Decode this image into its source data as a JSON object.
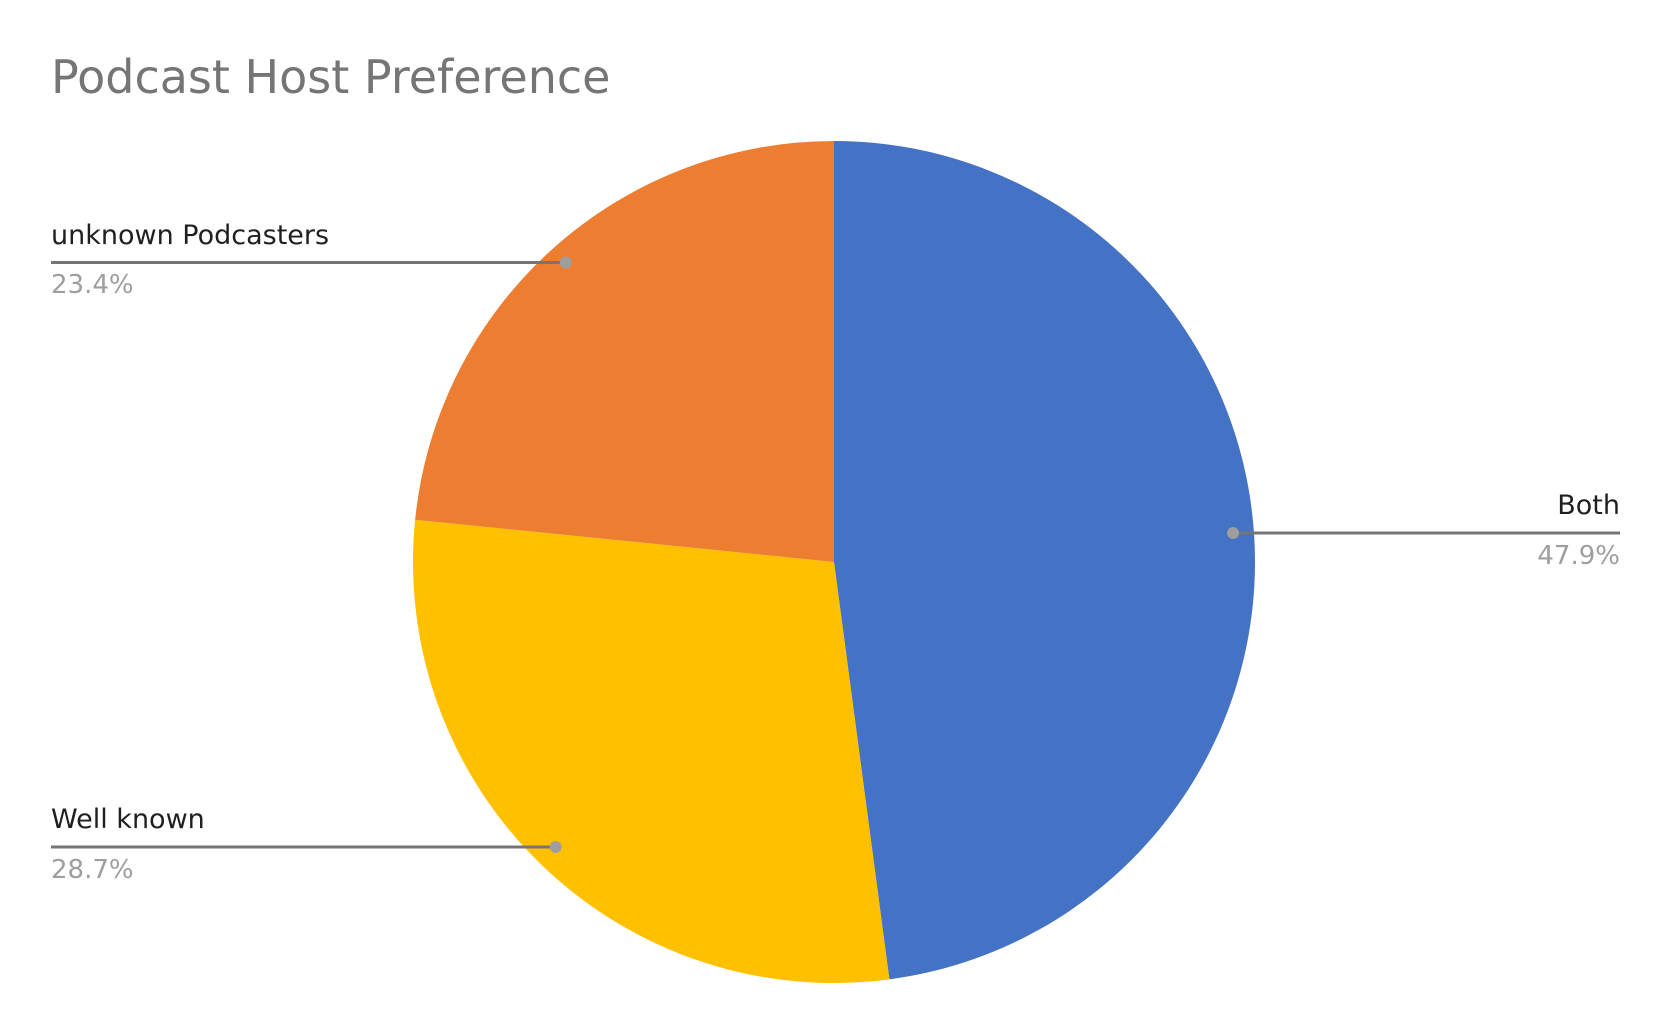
{
  "chart_data": {
    "type": "pie",
    "title": "Podcast Host Preference",
    "slices": [
      {
        "label": "Both",
        "value": 47.9,
        "value_label": "47.9%",
        "color": "#4472c4"
      },
      {
        "label": "Well known",
        "value": 28.7,
        "value_label": "28.7%",
        "color": "#ffc000"
      },
      {
        "label": "unknown Podcasters",
        "value": 23.4,
        "value_label": "23.4%",
        "color": "#ed7d31"
      }
    ],
    "start_angle_deg": 0,
    "direction": "clockwise",
    "legend": "none",
    "data_labels": "outside with leader lines"
  }
}
